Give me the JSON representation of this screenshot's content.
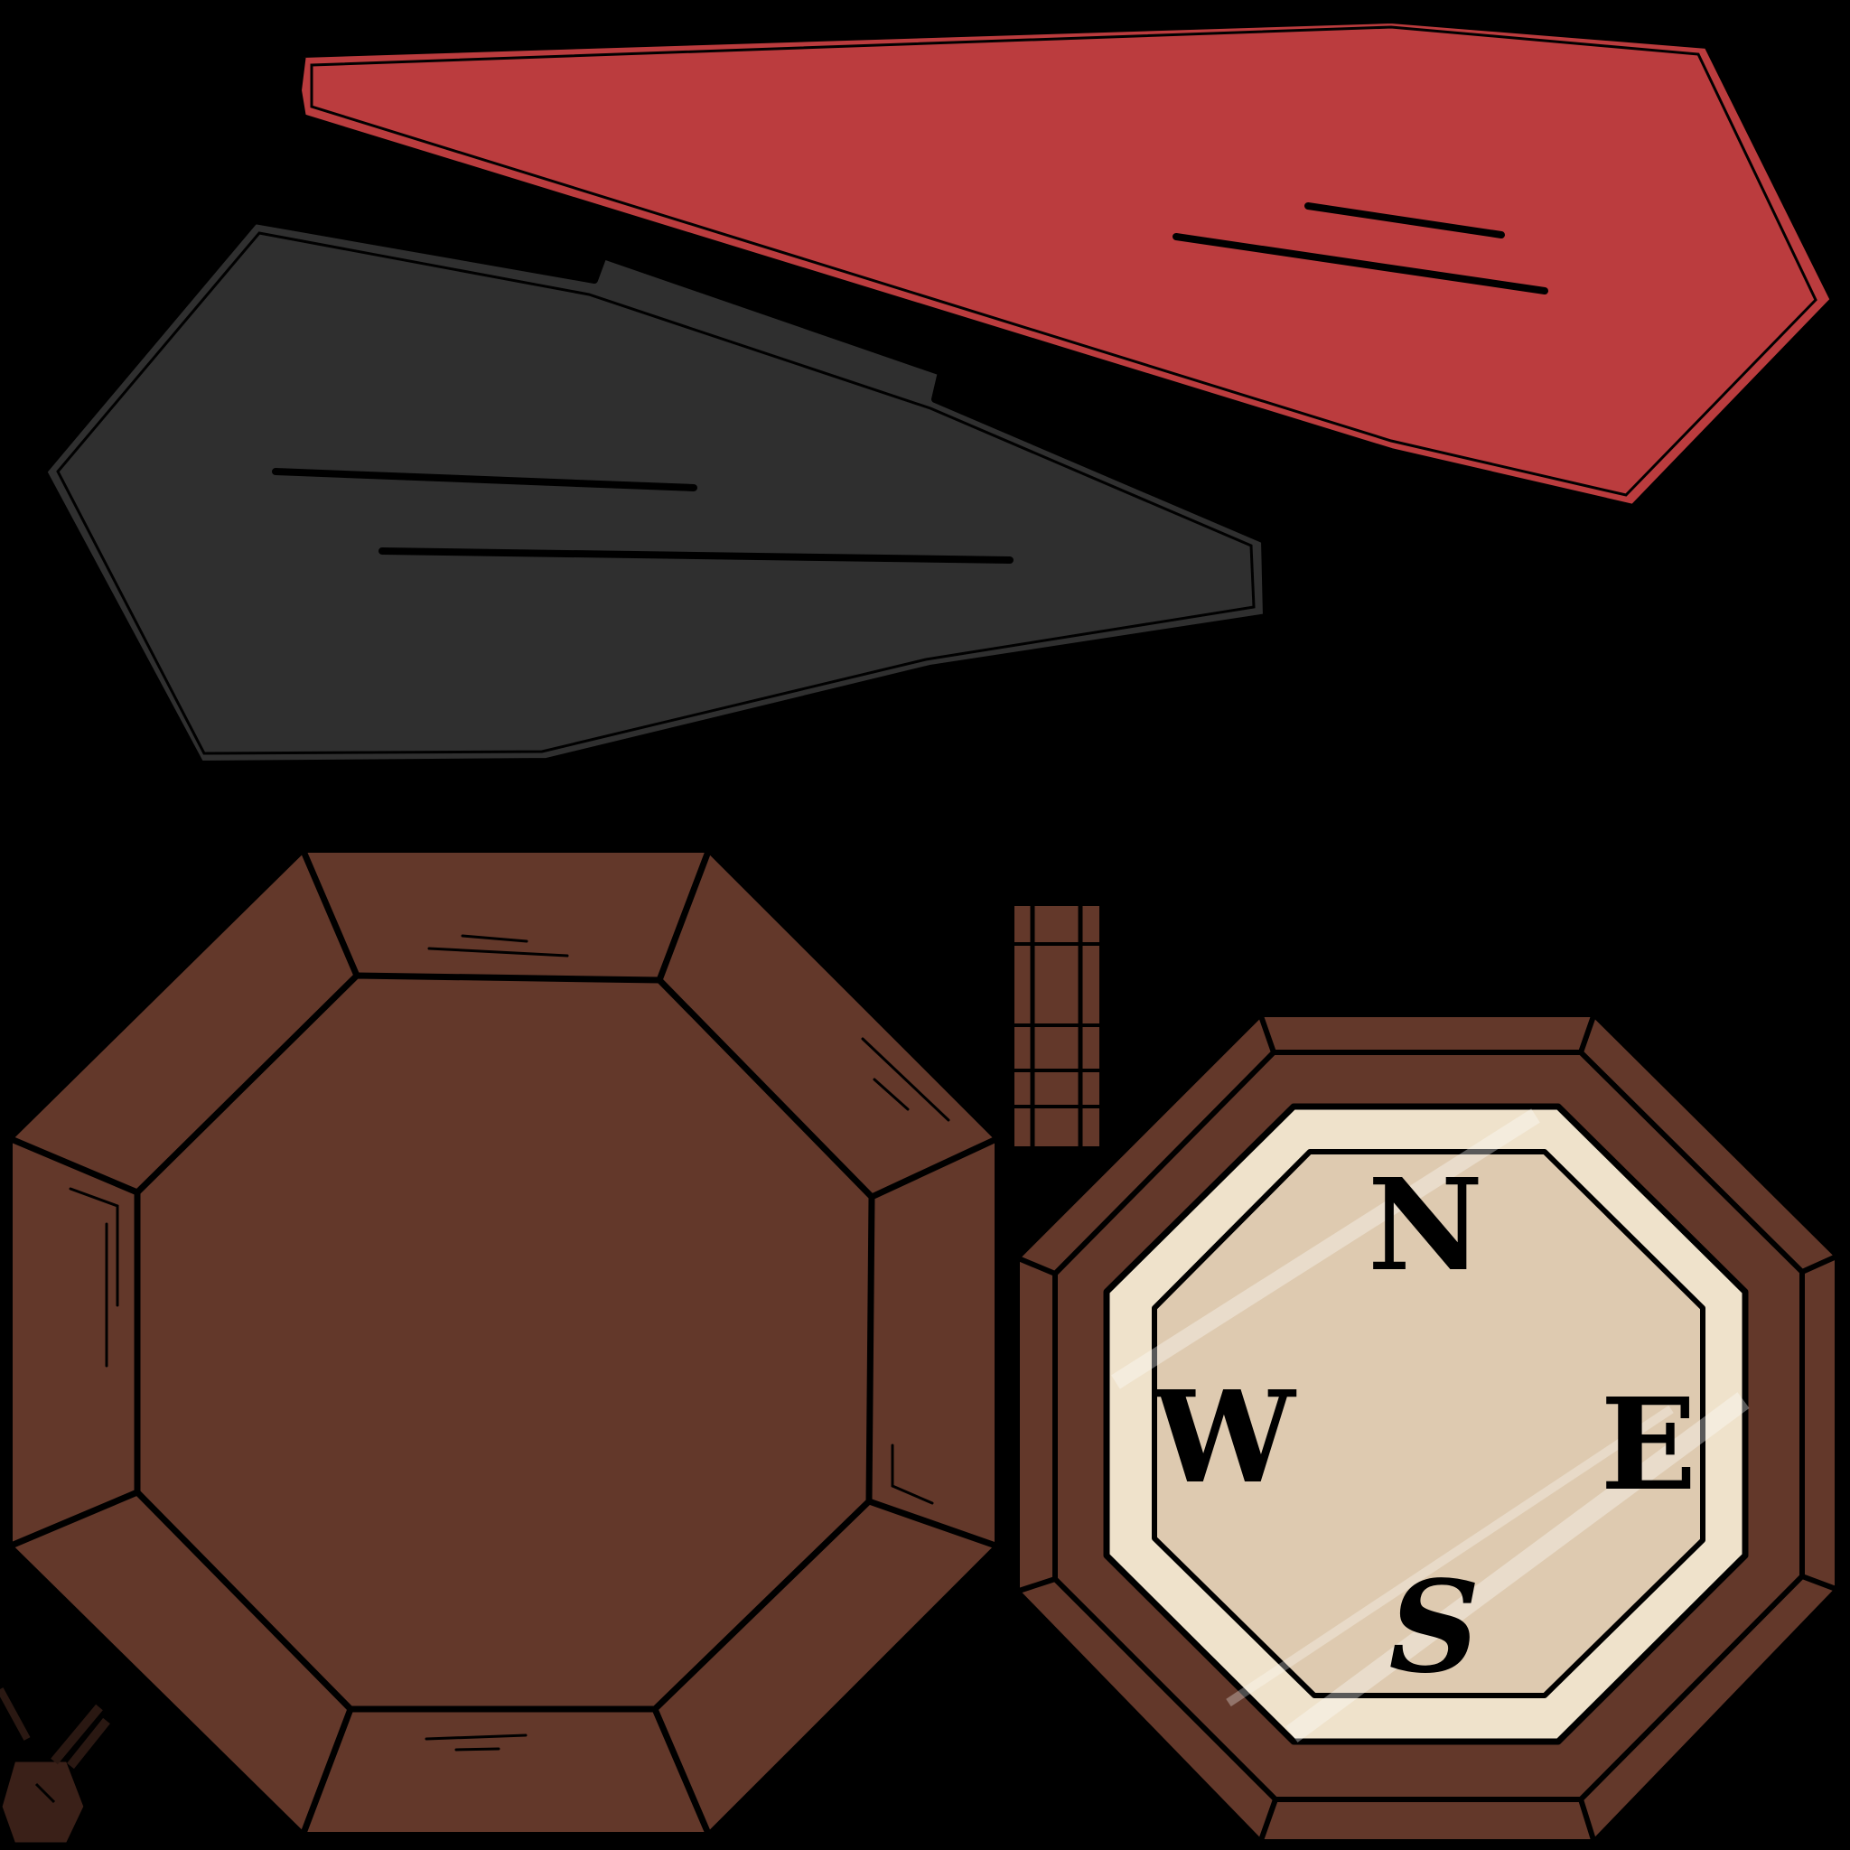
{
  "texture": {
    "background_color": "#000000",
    "parts": [
      {
        "name": "compass-needle-north-half",
        "color": "#bb3c3e",
        "description_role": "needle"
      },
      {
        "name": "compass-needle-south-half",
        "color": "#2f2f2f",
        "description_role": "needle"
      },
      {
        "name": "compass-lid",
        "color": "#63382a",
        "description_role": "lid"
      },
      {
        "name": "compass-hinge",
        "color": "#63382a",
        "description_role": "hinge"
      },
      {
        "name": "compass-base",
        "color": "#63382a",
        "description_role": "base"
      }
    ]
  },
  "compass_face": {
    "face_color": "#decab0",
    "face_rim_color": "#efe2cb",
    "wood_color": "#63382a",
    "labels": {
      "north": "N",
      "east": "E",
      "south": "S",
      "west": "W"
    }
  }
}
